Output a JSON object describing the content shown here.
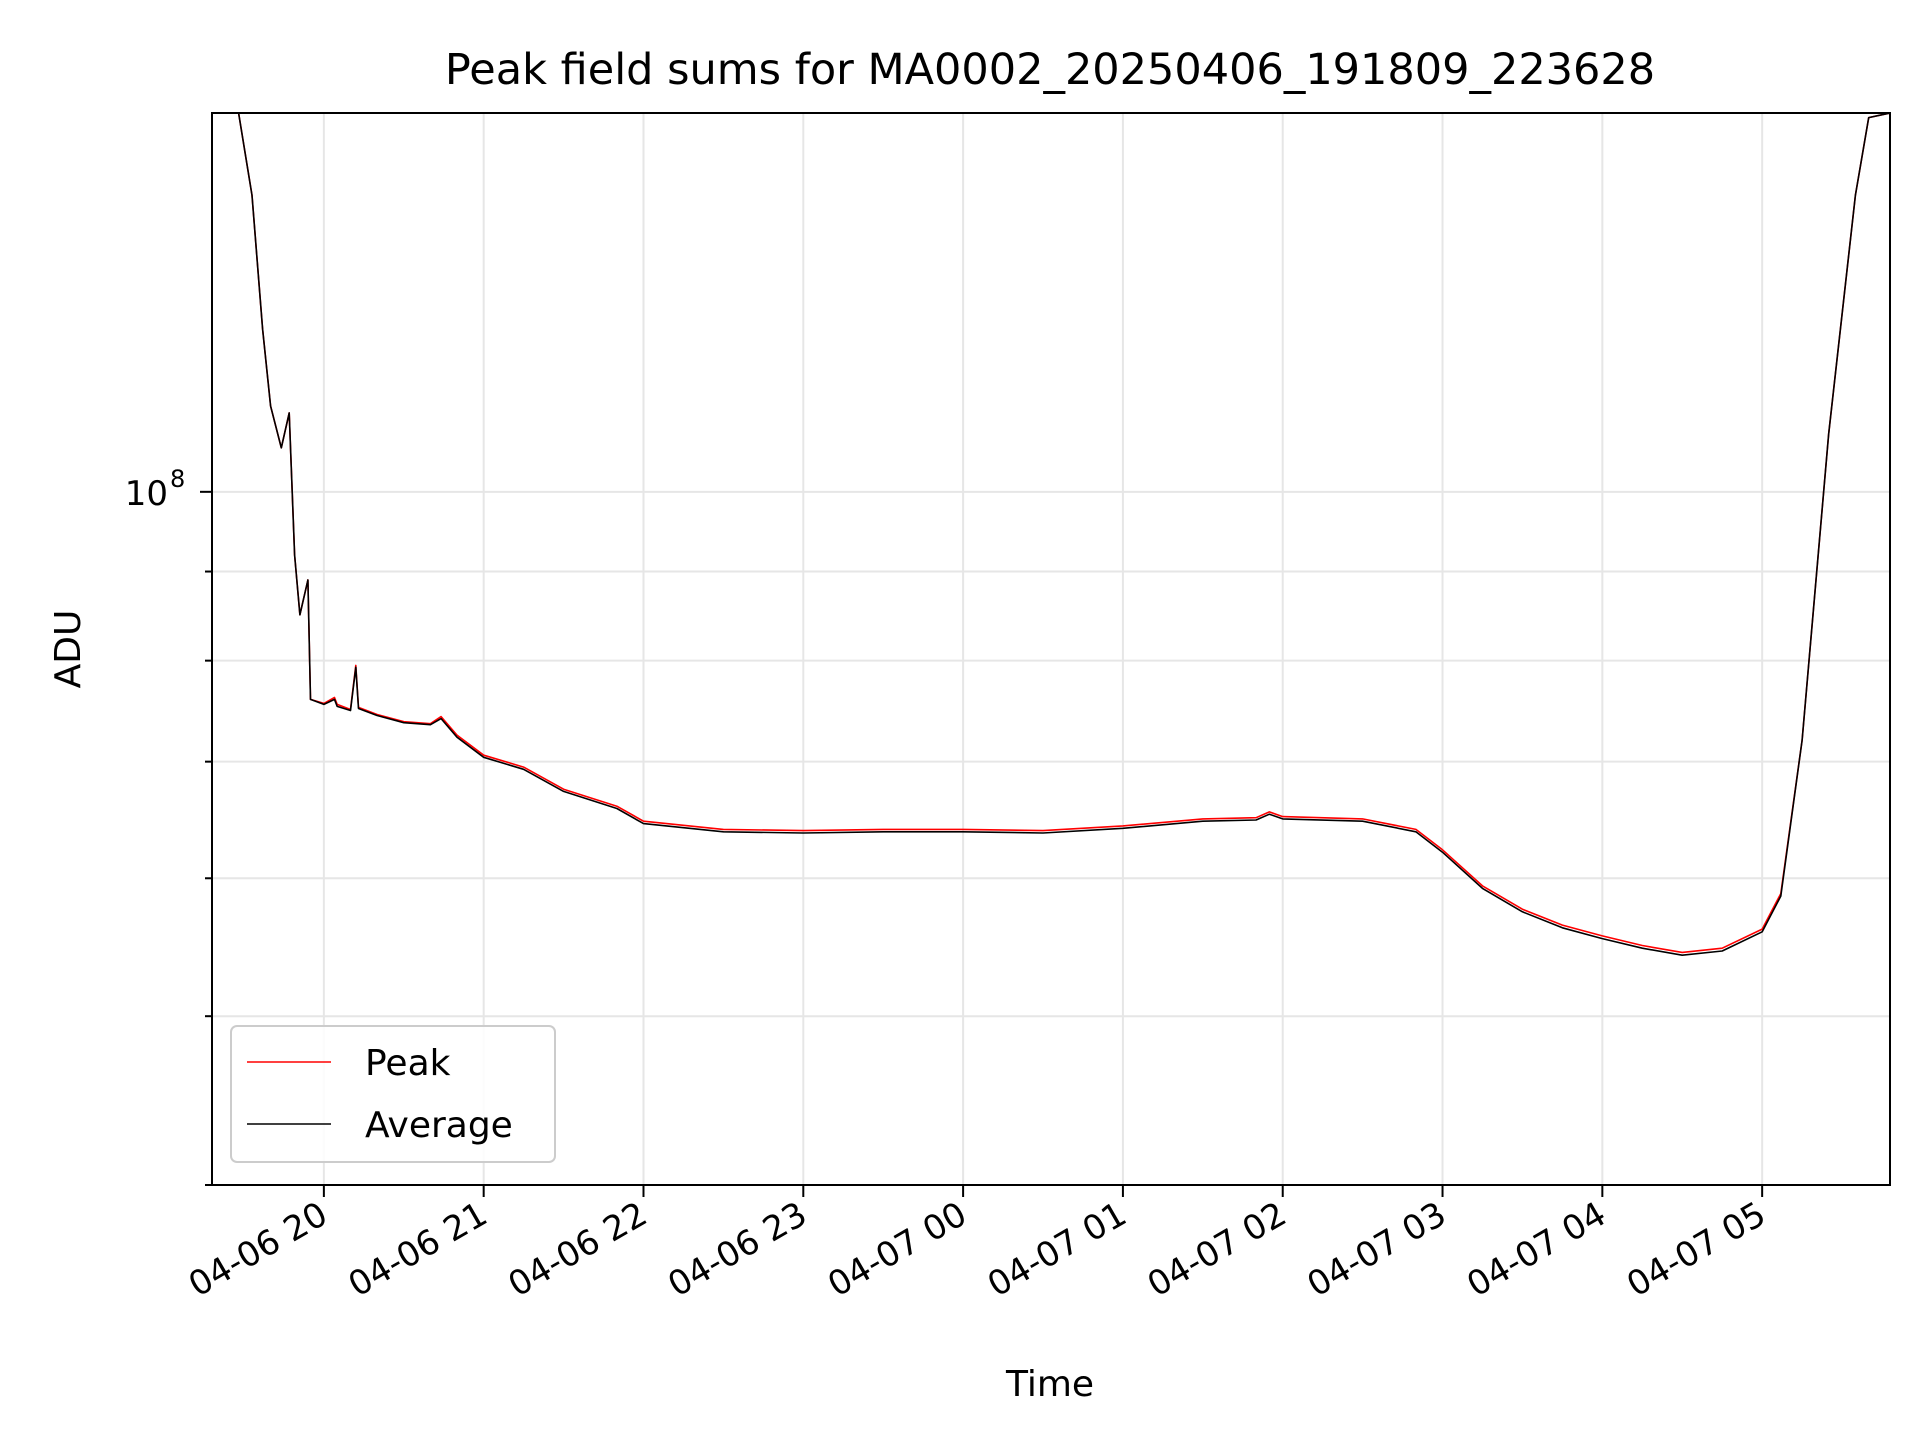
{
  "chart_data": {
    "type": "line",
    "title": "Peak field sums for MA0002_20250406_191809_223628",
    "xlabel": "Time",
    "ylabel": "ADU",
    "y_scale": "log",
    "y_tick_major_label": "10",
    "y_tick_major_exponent": "8",
    "y_tick_major_value": 100000000,
    "xlim": [
      "2025-04-06 19:18",
      "2025-04-07 05:48"
    ],
    "ylim": [
      40000000,
      165000000
    ],
    "grid": true,
    "legend_position": "lower-left",
    "x_ticks": [
      {
        "time": "2025-04-06 20:00",
        "label": "04-06 20"
      },
      {
        "time": "2025-04-06 21:00",
        "label": "04-06 21"
      },
      {
        "time": "2025-04-06 22:00",
        "label": "04-06 22"
      },
      {
        "time": "2025-04-06 23:00",
        "label": "04-06 23"
      },
      {
        "time": "2025-04-07 00:00",
        "label": "04-07 00"
      },
      {
        "time": "2025-04-07 01:00",
        "label": "04-07 01"
      },
      {
        "time": "2025-04-07 02:00",
        "label": "04-07 02"
      },
      {
        "time": "2025-04-07 03:00",
        "label": "04-07 03"
      },
      {
        "time": "2025-04-07 04:00",
        "label": "04-07 04"
      },
      {
        "time": "2025-04-07 05:00",
        "label": "04-07 05"
      }
    ],
    "x": [
      "2025-04-06 19:18",
      "2025-04-06 19:28",
      "2025-04-06 19:33",
      "2025-04-06 19:37",
      "2025-04-06 19:40",
      "2025-04-06 19:44",
      "2025-04-06 19:47",
      "2025-04-06 19:49",
      "2025-04-06 19:51",
      "2025-04-06 19:54",
      "2025-04-06 19:55",
      "2025-04-06 20:00",
      "2025-04-06 20:04",
      "2025-04-06 20:05",
      "2025-04-06 20:10",
      "2025-04-06 20:12",
      "2025-04-06 20:13",
      "2025-04-06 20:20",
      "2025-04-06 20:30",
      "2025-04-06 20:40",
      "2025-04-06 20:44",
      "2025-04-06 20:50",
      "2025-04-06 21:00",
      "2025-04-06 21:15",
      "2025-04-06 21:30",
      "2025-04-06 21:50",
      "2025-04-06 22:00",
      "2025-04-06 22:30",
      "2025-04-06 23:00",
      "2025-04-06 23:30",
      "2025-04-07 00:00",
      "2025-04-07 00:30",
      "2025-04-07 01:00",
      "2025-04-07 01:30",
      "2025-04-07 01:50",
      "2025-04-07 01:55",
      "2025-04-07 02:00",
      "2025-04-07 02:30",
      "2025-04-07 02:50",
      "2025-04-07 03:00",
      "2025-04-07 03:15",
      "2025-04-07 03:30",
      "2025-04-07 03:45",
      "2025-04-07 04:00",
      "2025-04-07 04:15",
      "2025-04-07 04:30",
      "2025-04-07 04:45",
      "2025-04-07 05:00",
      "2025-04-07 05:07",
      "2025-04-07 05:15",
      "2025-04-07 05:25",
      "2025-04-07 05:35",
      "2025-04-07 05:40",
      "2025-04-07 05:48"
    ],
    "series": [
      {
        "name": "Peak",
        "color": "#ff0000",
        "values": [
          165000000,
          165000000,
          148000000,
          124000000,
          112000000,
          106000000,
          111000000,
          92000000,
          85000000,
          89000000,
          76000000,
          75600000,
          76200000,
          75500000,
          75000000,
          79500000,
          75200000,
          74500000,
          73800000,
          73600000,
          74300000,
          72500000,
          70600000,
          69500000,
          67500000,
          66000000,
          64700000,
          64000000,
          63900000,
          64000000,
          64000000,
          63900000,
          64300000,
          64900000,
          65000000,
          65500000,
          65100000,
          64900000,
          64000000,
          62300000,
          59400000,
          57600000,
          56400000,
          55600000,
          54900000,
          54400000,
          54700000,
          56100000,
          58800000,
          72000000,
          108000000,
          148000000,
          164000000,
          165000000
        ]
      },
      {
        "name": "Average",
        "color": "#000000",
        "values": [
          165000000,
          165000000,
          148000000,
          124000000,
          112000000,
          106000000,
          111000000,
          92000000,
          85000000,
          89000000,
          76000000,
          75500000,
          76000000,
          75300000,
          74900000,
          79300000,
          75100000,
          74400000,
          73700000,
          73500000,
          74100000,
          72300000,
          70400000,
          69300000,
          67300000,
          65800000,
          64500000,
          63800000,
          63700000,
          63800000,
          63800000,
          63700000,
          64100000,
          64700000,
          64800000,
          65300000,
          64900000,
          64700000,
          63800000,
          62100000,
          59200000,
          57400000,
          56200000,
          55400000,
          54700000,
          54200000,
          54500000,
          55900000,
          58600000,
          72000000,
          108000000,
          148000000,
          164000000,
          165000000
        ]
      }
    ]
  }
}
